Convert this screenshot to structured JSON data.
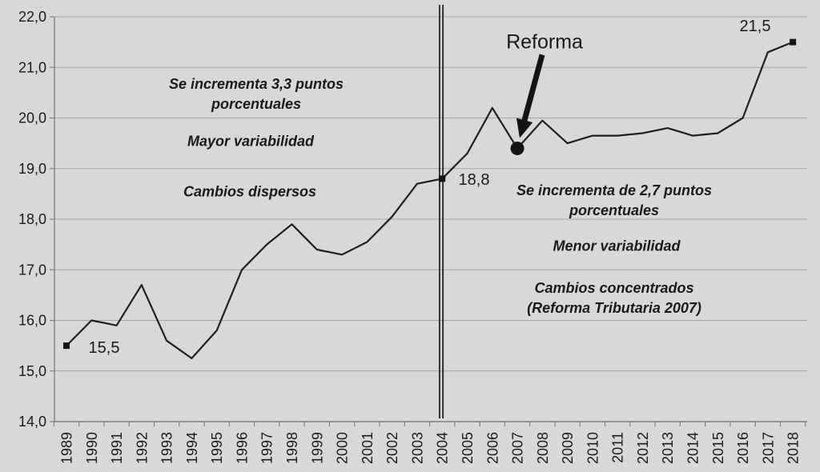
{
  "chart_data": {
    "type": "line",
    "x": [
      1989,
      1990,
      1991,
      1992,
      1993,
      1994,
      1995,
      1996,
      1997,
      1998,
      1999,
      2000,
      2001,
      2002,
      2003,
      2004,
      2005,
      2006,
      2007,
      2008,
      2009,
      2010,
      2011,
      2012,
      2013,
      2014,
      2015,
      2016,
      2017,
      2018
    ],
    "values": [
      15.5,
      16.0,
      15.9,
      16.7,
      15.6,
      15.25,
      15.8,
      17.0,
      17.5,
      17.9,
      17.4,
      17.3,
      17.55,
      18.05,
      18.7,
      18.8,
      19.3,
      20.2,
      19.4,
      19.95,
      19.5,
      19.65,
      19.65,
      19.7,
      19.8,
      19.65,
      19.7,
      20.0,
      21.3,
      21.5
    ],
    "ylim": [
      14.0,
      22.0
    ],
    "y_tick_step": 1.0,
    "y_tick_labels": [
      "14,0",
      "15,0",
      "16,0",
      "17,0",
      "18,0",
      "19,0",
      "20,0",
      "21,0",
      "22,0"
    ],
    "grid": true,
    "legend": false,
    "markers": [
      {
        "year": 1989,
        "shape": "square",
        "label": "15,5"
      },
      {
        "year": 2004,
        "shape": "square",
        "label": "18,8"
      },
      {
        "year": 2007,
        "shape": "circle",
        "label": ""
      },
      {
        "year": 2018,
        "shape": "square",
        "label": "21,5"
      }
    ],
    "divider_year": 2004,
    "colors": {
      "background": "#d8d8d8",
      "gridline": "#a5a5a5",
      "axis": "#7f7f7f",
      "series": "#1f1f1f",
      "marker": "#141414",
      "text": "#1a1a1a",
      "divider": "#2b2b2b",
      "arrow": "#141414"
    }
  },
  "annotations": {
    "reforma": "Reforma",
    "left_block": {
      "increase": "Se incrementa 3,3 puntos\nporcentuales",
      "variability": "Mayor variabilidad",
      "changes": "Cambios dispersos"
    },
    "right_block": {
      "increase": "Se incrementa de 2,7 puntos\nporcentuales",
      "variability": "Menor variabilidad",
      "changes": "Cambios concentrados\n(Reforma Tributaria  2007)"
    }
  }
}
